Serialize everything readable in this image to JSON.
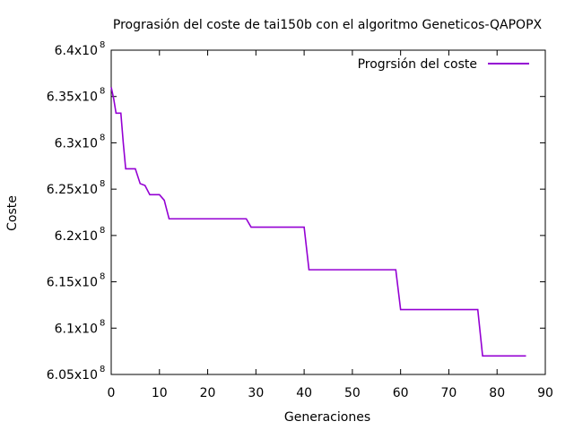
{
  "chart_data": {
    "type": "line",
    "title": "Prograsión del coste de tai150b con el algoritmo Geneticos-QAPOPX",
    "xlabel": "Generaciones",
    "ylabel": "Coste",
    "xlim": [
      0,
      90
    ],
    "ylim": [
      605000000,
      640000000
    ],
    "xticks": [
      0,
      10,
      20,
      30,
      40,
      50,
      60,
      70,
      80,
      90
    ],
    "xtick_labels": [
      "0",
      "10",
      "20",
      "30",
      "40",
      "50",
      "60",
      "70",
      "80",
      "90"
    ],
    "yticks": [
      605000000,
      610000000,
      615000000,
      620000000,
      625000000,
      630000000,
      635000000,
      640000000
    ],
    "ytick_mantissas": [
      "6.05x10",
      "6.1x10",
      "6.15x10",
      "6.2x10",
      "6.25x10",
      "6.3x10",
      "6.35x10",
      "6.4x10"
    ],
    "ytick_exponent": "8",
    "grid": false,
    "legend_position": "top-right",
    "series": [
      {
        "name": "Progrsión del coste",
        "color": "#9400d3",
        "x": [
          0,
          0.5,
          1,
          2,
          2.5,
          3,
          5,
          6,
          7,
          8,
          10,
          11,
          11.5,
          12,
          28,
          29,
          40,
          41,
          59,
          60,
          76,
          77,
          86
        ],
        "y": [
          636000000,
          634800000,
          633200000,
          633200000,
          630000000,
          627200000,
          627200000,
          625600000,
          625400000,
          624400000,
          624400000,
          623800000,
          622800000,
          621800000,
          621800000,
          620900000,
          620900000,
          616300000,
          616300000,
          612000000,
          612000000,
          607000000,
          607000000
        ]
      }
    ]
  }
}
